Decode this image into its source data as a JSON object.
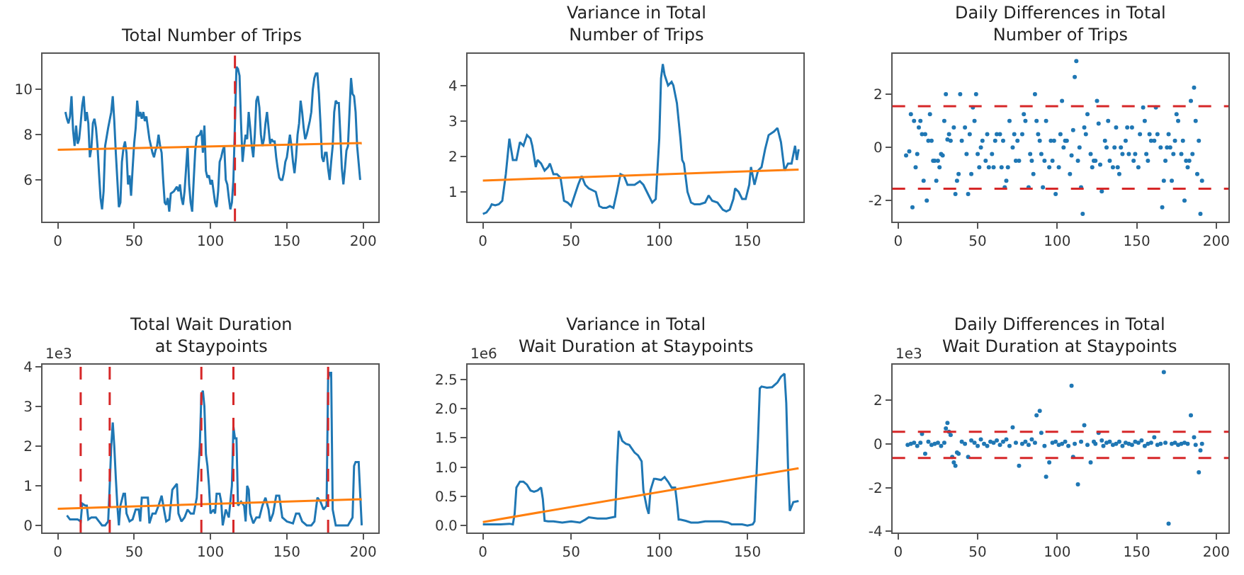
{
  "chart_data": [
    {
      "type": "line",
      "title": "Total Number of Trips",
      "xlim": [
        -10,
        210
      ],
      "xticks": [
        0,
        50,
        100,
        150,
        200
      ],
      "ylim": [
        4.17,
        11.57
      ],
      "yticks": [
        6,
        8,
        10
      ],
      "series": [
        {
          "color": "#1f77b4",
          "x": [
            5,
            6,
            7,
            8,
            9,
            10,
            11,
            12,
            13,
            14,
            15,
            16,
            17,
            18,
            19,
            20,
            21,
            22,
            23,
            24,
            25,
            26,
            27,
            28,
            29,
            30,
            31,
            33,
            35,
            36,
            37,
            38,
            39,
            40,
            41,
            42,
            43,
            44,
            45,
            46,
            47,
            48,
            49,
            50,
            51,
            52,
            53,
            54,
            55,
            56,
            57,
            58,
            59,
            60,
            61,
            62,
            63,
            64,
            65,
            66,
            67,
            68,
            69,
            70,
            71,
            72,
            73,
            74,
            76,
            78,
            79,
            80,
            81,
            82,
            83,
            84,
            85,
            86,
            87,
            88,
            89,
            90,
            91,
            93,
            94,
            95,
            96,
            97,
            98,
            99,
            100,
            101,
            102,
            103,
            104,
            105,
            106,
            107,
            108,
            109,
            110,
            111,
            112,
            113,
            114,
            115,
            116,
            117,
            118,
            119,
            120,
            121,
            122,
            123,
            124,
            125,
            126,
            127,
            128,
            129,
            130,
            131,
            132,
            133,
            134,
            135,
            136,
            137,
            138,
            139,
            140,
            141,
            142,
            143,
            144,
            145,
            146,
            147,
            148,
            149,
            150,
            151,
            152,
            153,
            154,
            155,
            156,
            157,
            158,
            159,
            160,
            161,
            162,
            163,
            164,
            165,
            166,
            167,
            168,
            169,
            170,
            171,
            172,
            173,
            174,
            175,
            176,
            177,
            178,
            179,
            180,
            181,
            182,
            183,
            184,
            185,
            186,
            187,
            188,
            189,
            190,
            191,
            192,
            193,
            194,
            195,
            196,
            198
          ],
          "values": [
            9.0,
            8.7,
            8.5,
            8.8,
            9.7,
            8.2,
            7.5,
            8.4,
            7.6,
            7.8,
            8.5,
            9.3,
            9.7,
            8.6,
            9.0,
            8.5,
            7.0,
            7.4,
            8.5,
            8.7,
            8.3,
            7.5,
            6.3,
            5.2,
            4.7,
            5.5,
            7.5,
            8.3,
            9.0,
            9.7,
            8.6,
            7.2,
            6.0,
            4.8,
            5.0,
            6.8,
            7.4,
            7.7,
            7.2,
            5.8,
            6.2,
            5.3,
            6.5,
            7.6,
            8.3,
            9.5,
            8.8,
            9.0,
            8.7,
            9.0,
            8.6,
            8.8,
            8.3,
            7.8,
            7.5,
            7.2,
            7.0,
            7.3,
            7.5,
            8.0,
            7.5,
            7.2,
            6.0,
            5.0,
            4.9,
            5.2,
            4.6,
            5.4,
            5.5,
            5.7,
            5.5,
            5.8,
            5.2,
            4.9,
            5.5,
            6.5,
            7.5,
            5.8,
            5.0,
            4.6,
            6.0,
            7.3,
            7.9,
            8.0,
            8.2,
            7.2,
            8.4,
            6.4,
            6.1,
            6.2,
            5.8,
            6.0,
            5.5,
            5.0,
            4.8,
            5.5,
            6.8,
            7.0,
            7.3,
            7.5,
            6.0,
            5.8,
            5.2,
            4.7,
            5.0,
            6.0,
            8.5,
            11.0,
            10.9,
            10.6,
            8.5,
            6.8,
            7.5,
            8.0,
            7.8,
            9.0,
            8.3,
            7.5,
            7.0,
            8.0,
            9.5,
            9.7,
            9.2,
            8.0,
            7.5,
            7.8,
            8.5,
            9.0,
            8.3,
            7.6,
            7.8,
            7.7,
            7.7,
            7.0,
            6.5,
            6.1,
            6.0,
            6.0,
            6.3,
            6.8,
            7.0,
            7.5,
            8.0,
            7.5,
            6.8,
            6.3,
            7.0,
            8.0,
            8.5,
            9.5,
            9.0,
            8.3,
            7.8,
            8.0,
            8.3,
            8.6,
            9.0,
            10.0,
            10.5,
            10.7,
            10.7,
            9.8,
            8.5,
            7.0,
            6.8,
            7.2,
            7.2,
            6.5,
            6.0,
            6.8,
            7.5,
            9.0,
            9.5,
            9.4,
            9.4,
            8.0,
            6.5,
            5.8,
            6.5,
            7.3,
            7.5,
            9.0,
            10.5,
            9.8,
            9.7,
            9.0,
            7.5,
            6.0
          ]
        },
        {
          "color": "#ff7f0e",
          "x": [
            0,
            199
          ],
          "values": [
            7.33,
            7.63
          ]
        }
      ],
      "ref_lines": [
        {
          "axis": "x",
          "value": 116,
          "color": "#d62728",
          "line_style": "dashed"
        }
      ]
    },
    {
      "type": "line",
      "title": "Variance in Total\nNumber of Trips",
      "xlim": [
        -8.75,
        181.75
      ],
      "xticks": [
        0,
        50,
        100,
        150
      ],
      "ylim": [
        0.17,
        4.89
      ],
      "yticks": [
        1,
        2,
        3,
        4
      ],
      "series": [
        {
          "color": "#1f77b4",
          "x": [
            0,
            2,
            4,
            5,
            7,
            9,
            11,
            13,
            15,
            16,
            17,
            19,
            21,
            23,
            25,
            27,
            28,
            30,
            31,
            33,
            35,
            37,
            38,
            40,
            42,
            44,
            46,
            48,
            50,
            52,
            54,
            56,
            58,
            60,
            62,
            64,
            66,
            68,
            70,
            72,
            74,
            76,
            78,
            80,
            82,
            86,
            89,
            91,
            94,
            96,
            98,
            100,
            101,
            102,
            103,
            105,
            107,
            108,
            110,
            112,
            113,
            114,
            116,
            118,
            120,
            123,
            126,
            128,
            130,
            133,
            136,
            138,
            140,
            142,
            143,
            145,
            147,
            149,
            151,
            152,
            154,
            156,
            158,
            160,
            162,
            165,
            167,
            169,
            171,
            173,
            175,
            177,
            178,
            179
          ],
          "values": [
            0.38,
            0.42,
            0.55,
            0.65,
            0.62,
            0.65,
            0.75,
            1.5,
            2.5,
            2.2,
            1.9,
            1.9,
            2.4,
            2.3,
            2.6,
            2.5,
            2.3,
            1.7,
            1.9,
            1.8,
            1.6,
            1.7,
            1.8,
            1.5,
            1.5,
            1.4,
            0.75,
            0.7,
            0.6,
            0.9,
            1.2,
            1.45,
            1.2,
            1.1,
            1.05,
            1.0,
            0.6,
            0.55,
            0.55,
            0.6,
            0.55,
            1.0,
            1.5,
            1.45,
            1.2,
            1.2,
            1.3,
            1.2,
            0.9,
            0.7,
            0.8,
            2.5,
            4.2,
            4.6,
            4.3,
            4.0,
            4.1,
            4.0,
            3.5,
            2.5,
            1.9,
            1.8,
            1.0,
            0.7,
            0.65,
            0.65,
            0.7,
            0.9,
            0.75,
            0.7,
            0.5,
            0.45,
            0.5,
            0.8,
            1.1,
            1.0,
            0.8,
            0.8,
            1.2,
            1.7,
            1.2,
            1.6,
            1.7,
            2.2,
            2.6,
            2.7,
            2.8,
            2.4,
            1.6,
            1.8,
            1.8,
            2.3,
            1.9,
            2.2
          ]
        },
        {
          "color": "#ff7f0e",
          "x": [
            0,
            179
          ],
          "values": [
            1.32,
            1.63
          ]
        }
      ]
    },
    {
      "type": "scatter",
      "title": "Daily Differences in Total\nNumber of Trips",
      "marker": "circle",
      "xlim": [
        -3.6,
        207.6
      ],
      "xticks": [
        0,
        50,
        100,
        150,
        200
      ],
      "ylim": [
        -2.78,
        3.52
      ],
      "yticks": [
        -2,
        0,
        2
      ],
      "series": [
        {
          "color": "#1f77b4",
          "x": [
            5,
            7,
            8,
            9,
            10,
            11,
            12,
            13,
            14,
            15,
            16,
            17,
            18,
            19,
            20,
            21,
            22,
            23,
            24,
            25,
            26,
            27,
            28,
            29,
            30,
            31,
            32,
            33,
            35,
            36,
            37,
            38,
            39,
            40,
            42,
            43,
            44,
            45,
            46,
            47,
            48,
            49,
            50,
            51,
            52,
            53,
            55,
            56,
            57,
            59,
            60,
            61,
            62,
            64,
            65,
            66,
            67,
            68,
            69,
            70,
            72,
            73,
            74,
            75,
            76,
            78,
            79,
            80,
            82,
            83,
            84,
            85,
            86,
            87,
            88,
            89,
            90,
            91,
            92,
            93,
            95,
            96,
            97,
            98,
            99,
            101,
            102,
            103,
            104,
            105,
            106,
            108,
            109,
            110,
            111,
            112,
            113,
            114,
            115,
            116,
            117,
            118,
            119,
            121,
            122,
            123,
            124,
            125,
            126,
            127,
            128,
            130,
            131,
            132,
            133,
            135,
            136,
            137,
            138,
            139,
            140,
            141,
            143,
            144,
            145,
            147,
            148,
            149,
            151,
            152,
            154,
            155,
            156,
            157,
            158,
            159,
            161,
            162,
            163,
            165,
            166,
            167,
            168,
            169,
            170,
            171,
            172,
            173,
            174,
            175,
            176,
            178,
            179,
            180,
            181,
            182,
            183,
            184,
            185,
            186,
            187,
            188,
            189,
            190,
            191
          ],
          "values": [
            -0.3,
            -0.15,
            1.25,
            -2.25,
            1.0,
            -0.75,
            -0.25,
            0.75,
            1.0,
            0.5,
            -1.25,
            0.5,
            -2.0,
            0.25,
            1.25,
            0.25,
            -0.5,
            -0.5,
            -1.25,
            -0.5,
            -0.75,
            -0.25,
            -0.3,
            1.0,
            2.0,
            0.3,
            0.5,
            0.25,
            0.75,
            -1.75,
            -1.25,
            -1.0,
            2.0,
            0.25,
            0.75,
            -0.25,
            -1.75,
            0.5,
            -1.0,
            1.5,
            1.0,
            2.0,
            -0.25,
            -0.75,
            0,
            0.25,
            -0.5,
            0.5,
            -0.75,
            -0.25,
            -0.75,
            0.25,
            0.5,
            0.5,
            -0.75,
            0.25,
            -1.5,
            -1.25,
            -0.75,
            1.0,
            0,
            0.5,
            -0.5,
            0.25,
            -0.5,
            0.5,
            1.25,
            1.0,
            -1.5,
            -0.25,
            -0.5,
            -1.0,
            2.0,
            1.0,
            0.5,
            0.25,
            -0.25,
            -1.5,
            -0.5,
            1.0,
            -0.75,
            0.25,
            -0.5,
            0.25,
            -1.75,
            -0.75,
            0.5,
            1.75,
            0,
            0.25,
            0.25,
            -1.0,
            -0.3,
            0.65,
            2.65,
            3.25,
            -0.5,
            0,
            -1.5,
            -2.5,
            0.75,
            0.5,
            1.25,
            -0.25,
            -0.75,
            -0.5,
            -0.5,
            1.75,
            0.9,
            -0.65,
            -1.65,
            0.25,
            0,
            1.0,
            -0.5,
            -0.75,
            0,
            0.75,
            -0.75,
            -1.0,
            0,
            -0.25,
            0.25,
            0.75,
            -0.25,
            0.75,
            -0.5,
            -0.25,
            -0.75,
            0.5,
            1.5,
            1.0,
            -0.25,
            -0.5,
            0.5,
            0.25,
            0.25,
            1.5,
            0.5,
            0,
            -2.25,
            -1.25,
            -0.5,
            0,
            0.5,
            0,
            -1.25,
            -0.25,
            0.25,
            1.25,
            1.0,
            -0.25,
            0.25,
            -2.0,
            -0.5,
            -0.75,
            -0.5,
            1.75,
            -0.25,
            2.25,
            1.0,
            -1.0,
            0.25,
            -2.5,
            -1.25
          ]
        }
      ],
      "ref_lines": [
        {
          "axis": "y",
          "value": 1.55,
          "color": "#d62728",
          "line_style": "dashed"
        },
        {
          "axis": "y",
          "value": -1.55,
          "color": "#d62728",
          "line_style": "dashed"
        }
      ]
    },
    {
      "type": "line",
      "title": "Total Wait Duration\nat Staypoints",
      "annotations": [
        "1e3"
      ],
      "xlim": [
        -10,
        210
      ],
      "xticks": [
        0,
        50,
        100,
        150,
        200
      ],
      "ylim": [
        -0.18,
        4.05
      ],
      "yticks": [
        0,
        1,
        2,
        3,
        4
      ],
      "series": [
        {
          "color": "#1f77b4",
          "x": [
            6,
            8,
            10,
            13,
            15,
            16,
            18,
            19,
            20,
            22,
            25,
            27,
            29,
            31,
            33,
            34,
            35,
            36,
            37,
            38,
            39,
            40,
            41,
            43,
            44,
            45,
            47,
            49,
            51,
            53,
            54,
            55,
            57,
            59,
            60,
            62,
            64,
            66,
            68,
            70,
            71,
            73,
            75,
            77,
            78,
            79,
            81,
            83,
            85,
            87,
            89,
            91,
            93,
            94,
            95,
            96,
            97,
            98,
            99,
            100,
            102,
            103,
            104,
            106,
            107,
            108,
            110,
            112,
            114,
            115,
            116,
            117,
            118,
            120,
            122,
            123,
            124,
            125,
            126,
            128,
            130,
            132,
            134,
            136,
            138,
            139,
            141,
            143,
            145,
            147,
            150,
            154,
            156,
            158,
            160,
            163,
            166,
            168,
            170,
            172,
            174,
            176,
            177,
            178,
            179,
            180,
            182,
            185,
            190,
            193,
            194,
            195,
            197,
            198,
            199
          ],
          "values": [
            0.25,
            0.15,
            0.15,
            0.15,
            0.1,
            0.55,
            0.5,
            0.5,
            0.15,
            0.2,
            0.2,
            0.1,
            0.0,
            0.0,
            0.1,
            1.0,
            2.0,
            2.6,
            2.0,
            1.2,
            0.5,
            0.0,
            0.5,
            0.8,
            0.8,
            0.3,
            0.1,
            0.15,
            0.4,
            0.4,
            0.1,
            0.7,
            0.7,
            0.7,
            0.05,
            0.3,
            0.3,
            0.5,
            0.75,
            0.3,
            0.1,
            0.15,
            0.9,
            1.0,
            1.05,
            0.3,
            0.1,
            0.2,
            0.4,
            0.3,
            0.3,
            0.7,
            2.0,
            3.3,
            3.4,
            3.0,
            1.8,
            1.5,
            1.0,
            0.3,
            0.4,
            0.3,
            0.8,
            0.8,
            0.6,
            0.0,
            0.4,
            0.2,
            1.0,
            2.5,
            2.2,
            2.2,
            0.5,
            0.6,
            0.5,
            0.1,
            1.0,
            0.9,
            0.3,
            0.05,
            0.2,
            0.2,
            0.5,
            0.7,
            0.4,
            0.1,
            0.3,
            0.75,
            0.75,
            0.2,
            0.1,
            0.05,
            0.3,
            0.3,
            0.1,
            0.0,
            0.0,
            0.1,
            0.7,
            0.6,
            0.4,
            0.5,
            3.7,
            3.85,
            3.85,
            0.4,
            0.0,
            0.0,
            0.0,
            0.2,
            1.5,
            1.6,
            1.6,
            0.8,
            0.0
          ]
        },
        {
          "color": "#ff7f0e",
          "x": [
            0,
            199
          ],
          "values": [
            0.42,
            0.66
          ]
        }
      ],
      "ref_lines": [
        {
          "axis": "x",
          "value": 15,
          "color": "#d62728",
          "line_style": "dashed"
        },
        {
          "axis": "x",
          "value": 34,
          "color": "#d62728",
          "line_style": "dashed"
        },
        {
          "axis": "x",
          "value": 94,
          "color": "#d62728",
          "line_style": "dashed"
        },
        {
          "axis": "x",
          "value": 115,
          "color": "#d62728",
          "line_style": "dashed"
        },
        {
          "axis": "x",
          "value": 177,
          "color": "#d62728",
          "line_style": "dashed"
        }
      ]
    },
    {
      "type": "line",
      "title": "Variance in Total\nWait Duration at Staypoints",
      "annotations": [
        "1e6"
      ],
      "xlim": [
        -8.75,
        181.75
      ],
      "xticks": [
        0,
        50,
        100,
        150
      ],
      "ylim": [
        -0.12,
        2.75
      ],
      "yticks": [
        {
          "value": 0,
          "label": "0.0"
        },
        {
          "value": 0.5,
          "label": "0.5"
        },
        {
          "value": 1,
          "label": "1.0"
        },
        {
          "value": 1.5,
          "label": "1.5"
        },
        {
          "value": 2,
          "label": "2.0"
        },
        {
          "value": 2.5,
          "label": "2.5"
        }
      ],
      "series": [
        {
          "color": "#1f77b4",
          "x": [
            0,
            5,
            10,
            15,
            17,
            18,
            19,
            21,
            23,
            25,
            27,
            29,
            31,
            33,
            34,
            35,
            37,
            40,
            45,
            50,
            55,
            58,
            60,
            65,
            70,
            75,
            76,
            77,
            79,
            81,
            83,
            86,
            88,
            90,
            91,
            93,
            94,
            95,
            97,
            98,
            101,
            103,
            105,
            107,
            109,
            110,
            111,
            112,
            115,
            118,
            122,
            126,
            130,
            135,
            139,
            141,
            144,
            147,
            150,
            153,
            154,
            156,
            157,
            158,
            161,
            164,
            167,
            169,
            171,
            172,
            173,
            174,
            176,
            179
          ],
          "values": [
            0.02,
            0.02,
            0.02,
            0.03,
            0.02,
            0.2,
            0.65,
            0.75,
            0.75,
            0.7,
            0.6,
            0.58,
            0.6,
            0.65,
            0.45,
            0.08,
            0.07,
            0.07,
            0.05,
            0.07,
            0.05,
            0.1,
            0.14,
            0.12,
            0.12,
            0.15,
            1.0,
            1.62,
            1.45,
            1.4,
            1.38,
            1.25,
            1.2,
            1.1,
            0.6,
            0.3,
            0.2,
            0.6,
            0.8,
            0.8,
            0.78,
            0.83,
            0.75,
            0.65,
            0.65,
            0.4,
            0.1,
            0.1,
            0.08,
            0.05,
            0.05,
            0.07,
            0.07,
            0.07,
            0.05,
            0.02,
            0.02,
            0.02,
            0.0,
            0.02,
            0.07,
            1.5,
            2.35,
            2.38,
            2.36,
            2.37,
            2.45,
            2.55,
            2.6,
            2.1,
            1.0,
            0.25,
            0.4,
            0.42
          ]
        },
        {
          "color": "#ff7f0e",
          "x": [
            0,
            179
          ],
          "values": [
            0.06,
            0.98
          ]
        }
      ]
    },
    {
      "type": "scatter",
      "title": "Daily Differences in Total\nWait Duration at Staypoints",
      "annotations": [
        "1e3"
      ],
      "marker": "circle",
      "xlim": [
        -3.6,
        207.6
      ],
      "xticks": [
        0,
        50,
        100,
        150,
        200
      ],
      "ylim": [
        -4.05,
        3.6
      ],
      "yticks": [
        -4,
        -2,
        0,
        2
      ],
      "series": [
        {
          "color": "#1f77b4",
          "x": [
            6,
            8,
            10,
            12,
            14,
            15,
            17,
            19,
            21,
            23,
            25,
            27,
            29,
            30,
            31,
            32,
            33,
            34,
            35,
            36,
            37,
            38,
            40,
            42,
            44,
            46,
            48,
            50,
            52,
            54,
            56,
            58,
            60,
            62,
            64,
            66,
            68,
            70,
            72,
            74,
            76,
            78,
            80,
            82,
            84,
            86,
            87,
            89,
            90,
            92,
            93,
            95,
            97,
            99,
            101,
            103,
            105,
            107,
            109,
            110,
            111,
            113,
            115,
            117,
            119,
            121,
            123,
            124,
            126,
            128,
            129,
            131,
            133,
            135,
            137,
            139,
            141,
            143,
            145,
            147,
            149,
            151,
            153,
            155,
            157,
            159,
            161,
            163,
            165,
            167,
            168,
            170,
            172,
            174,
            176,
            178,
            180,
            182,
            184,
            186,
            187,
            189,
            190,
            191
          ],
          "values": [
            -0.05,
            0.0,
            0.05,
            -0.1,
            0.05,
            0.45,
            -0.45,
            0.1,
            -0.05,
            0.0,
            0.05,
            -0.1,
            0.05,
            0.7,
            0.95,
            0.55,
            0.4,
            -0.6,
            -0.85,
            -1.0,
            -0.4,
            -0.45,
            0.1,
            0.0,
            -0.6,
            0.15,
            0.05,
            -0.1,
            0.2,
            0.0,
            -0.1,
            0.1,
            0.05,
            0.15,
            -0.05,
            0.1,
            0.2,
            -0.1,
            0.75,
            0.05,
            -1.0,
            0.0,
            0.1,
            -0.05,
            0.2,
            0.05,
            1.3,
            1.5,
            0.5,
            -0.1,
            -1.5,
            -0.85,
            0.05,
            0.1,
            -0.05,
            0.0,
            0.1,
            -0.1,
            2.65,
            -0.6,
            0.0,
            -1.85,
            0.1,
            0.85,
            -0.05,
            -0.85,
            0.1,
            0.0,
            0.5,
            0.15,
            -0.1,
            0.05,
            0.1,
            -0.05,
            0.0,
            0.1,
            -0.1,
            0.05,
            0.0,
            -0.05,
            0.1,
            0.05,
            0.15,
            -0.1,
            0.0,
            0.05,
            0.3,
            -0.05,
            0.0,
            3.27,
            0.05,
            -3.65,
            0.0,
            0.05,
            -0.05,
            0.0,
            0.05,
            0.0,
            1.3,
            0.3,
            -0.05,
            -1.3,
            -0.3,
            0.0
          ]
        }
      ],
      "ref_lines": [
        {
          "axis": "y",
          "value": 0.55,
          "color": "#d62728",
          "line_style": "dashed"
        },
        {
          "axis": "y",
          "value": -0.65,
          "color": "#d62728",
          "line_style": "dashed"
        }
      ]
    }
  ]
}
